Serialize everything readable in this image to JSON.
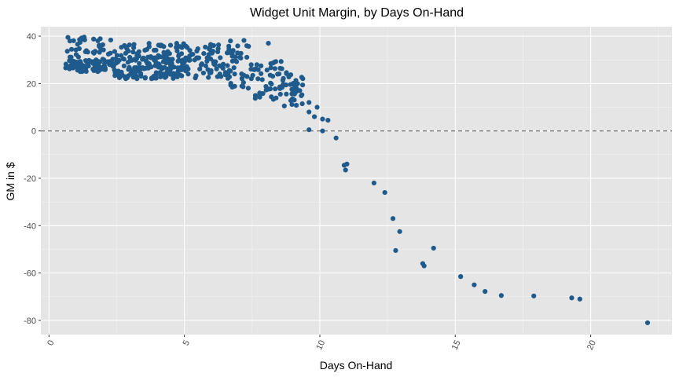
{
  "chart_data": {
    "type": "scatter",
    "title": "Widget Unit Margin, by Days On-Hand",
    "xlabel": "Days On-Hand",
    "ylabel": "GM in $",
    "xlim": [
      -0.3,
      23.0
    ],
    "ylim": [
      -86,
      44
    ],
    "x_ticks": [
      0,
      5,
      10,
      15,
      20
    ],
    "y_ticks": [
      -80,
      -60,
      -40,
      -20,
      0,
      20,
      40
    ],
    "reference_line": {
      "y": 0,
      "style": "dashed"
    },
    "grid": true,
    "point_color": "#1f5a8c",
    "panel_color": "#e5e5e5",
    "clusters": [
      {
        "x_range": [
          0.6,
          2.4
        ],
        "y_range": [
          25,
          30
        ],
        "count": 80
      },
      {
        "x_range": [
          0.6,
          2.4
        ],
        "y_range": [
          30,
          39
        ],
        "count": 35
      },
      {
        "x_range": [
          2.4,
          5.0
        ],
        "y_range": [
          22,
          32
        ],
        "count": 150
      },
      {
        "x_range": [
          2.4,
          5.0
        ],
        "y_range": [
          32,
          37
        ],
        "count": 40
      },
      {
        "x_range": [
          5.0,
          6.8
        ],
        "y_range": [
          22,
          37
        ],
        "count": 80
      },
      {
        "x_range": [
          6.7,
          7.6
        ],
        "y_range": [
          18,
          38
        ],
        "count": 35
      },
      {
        "x_range": [
          7.6,
          8.6
        ],
        "y_range": [
          13,
          30
        ],
        "count": 40
      },
      {
        "x_range": [
          8.6,
          9.4
        ],
        "y_range": [
          10,
          25
        ],
        "count": 40
      }
    ],
    "points": [
      {
        "x": 0.7,
        "y": 39.5
      },
      {
        "x": 1.2,
        "y": 39.2
      },
      {
        "x": 1.3,
        "y": 39.6
      },
      {
        "x": 6.7,
        "y": 38.0
      },
      {
        "x": 7.2,
        "y": 38.2
      },
      {
        "x": 8.1,
        "y": 37.0
      },
      {
        "x": 9.6,
        "y": 12.0
      },
      {
        "x": 9.6,
        "y": 8.0
      },
      {
        "x": 9.8,
        "y": 6.0
      },
      {
        "x": 9.9,
        "y": 10.0
      },
      {
        "x": 10.1,
        "y": 5.0
      },
      {
        "x": 10.3,
        "y": 4.5
      },
      {
        "x": 9.6,
        "y": 0.5
      },
      {
        "x": 10.1,
        "y": 0.0
      },
      {
        "x": 10.6,
        "y": -3.0
      },
      {
        "x": 10.9,
        "y": -14.5
      },
      {
        "x": 11.0,
        "y": -14.0
      },
      {
        "x": 10.95,
        "y": -16.5
      },
      {
        "x": 12.0,
        "y": -22.0
      },
      {
        "x": 12.4,
        "y": -26.0
      },
      {
        "x": 12.7,
        "y": -37.0
      },
      {
        "x": 12.95,
        "y": -42.5
      },
      {
        "x": 12.8,
        "y": -50.5
      },
      {
        "x": 13.8,
        "y": -56.0
      },
      {
        "x": 13.85,
        "y": -57.0
      },
      {
        "x": 14.2,
        "y": -49.5
      },
      {
        "x": 15.2,
        "y": -61.5
      },
      {
        "x": 15.7,
        "y": -65.0
      },
      {
        "x": 16.1,
        "y": -67.8
      },
      {
        "x": 16.7,
        "y": -69.5
      },
      {
        "x": 17.9,
        "y": -69.7
      },
      {
        "x": 19.3,
        "y": -70.5
      },
      {
        "x": 19.6,
        "y": -71.0
      },
      {
        "x": 22.1,
        "y": -81.0
      }
    ]
  }
}
